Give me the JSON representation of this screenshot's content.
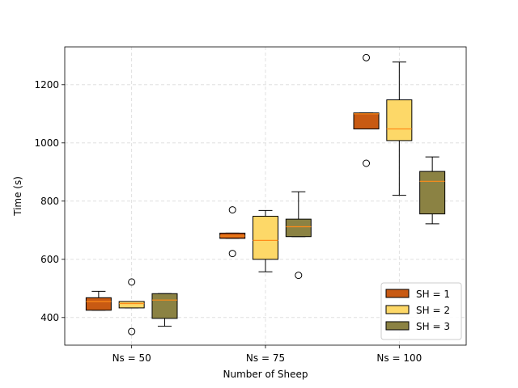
{
  "chart_data": {
    "type": "box",
    "title": "",
    "xlabel": "Number of Sheep",
    "ylabel": "Time (s)",
    "categories": [
      "Ns = 50",
      "Ns = 75",
      "Ns = 100"
    ],
    "ylim": [
      305,
      1330
    ],
    "yticks": [
      400,
      600,
      800,
      1000,
      1200
    ],
    "grid": true,
    "legend_position": "lower-right",
    "series": [
      {
        "name": "SH = 1",
        "color": "#c85a13",
        "boxes": [
          {
            "whisker_low": 425,
            "q1": 425,
            "median": 455,
            "q3": 468,
            "whisker_high": 490,
            "outliers": []
          },
          {
            "whisker_low": 672,
            "q1": 672,
            "median": 680,
            "q3": 690,
            "whisker_high": 690,
            "outliers": [
              770,
              620
            ]
          },
          {
            "whisker_low": 1048,
            "q1": 1048,
            "median": 1100,
            "q3": 1103,
            "whisker_high": 1103,
            "outliers": [
              1293,
              930
            ]
          }
        ]
      },
      {
        "name": "SH = 2",
        "color": "#fdd868",
        "boxes": [
          {
            "whisker_low": 433,
            "q1": 433,
            "median": 448,
            "q3": 455,
            "whisker_high": 455,
            "outliers": [
              522,
              352
            ]
          },
          {
            "whisker_low": 557,
            "q1": 600,
            "median": 665,
            "q3": 748,
            "whisker_high": 768,
            "outliers": []
          },
          {
            "whisker_low": 820,
            "q1": 1008,
            "median": 1048,
            "q3": 1148,
            "whisker_high": 1278,
            "outliers": []
          }
        ]
      },
      {
        "name": "SH = 3",
        "color": "#8b8243",
        "boxes": [
          {
            "whisker_low": 370,
            "q1": 397,
            "median": 460,
            "q3": 482,
            "whisker_high": 482,
            "outliers": []
          },
          {
            "whisker_low": 678,
            "q1": 678,
            "median": 712,
            "q3": 738,
            "whisker_high": 832,
            "outliers": [
              545
            ]
          },
          {
            "whisker_low": 722,
            "q1": 756,
            "median": 868,
            "q3": 902,
            "whisker_high": 952,
            "outliers": []
          }
        ]
      }
    ],
    "median_color": "#ff8c1a"
  }
}
